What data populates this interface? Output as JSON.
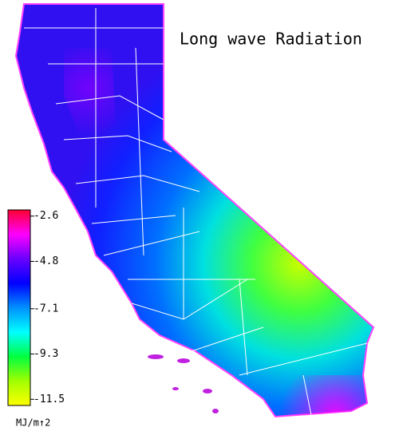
{
  "title": "Long wave Radiation",
  "colorbar": {
    "lim": [
      -2.3,
      -11.8
    ],
    "ticks": [
      -2.6,
      -4.8,
      -7.1,
      -9.3,
      -11.5
    ],
    "unit": "MJ/m↑2",
    "colors": [
      "#ff0030",
      "#ff00ff",
      "#6a00ff",
      "#0000ff",
      "#0090ff",
      "#00ffff",
      "#00ff40",
      "#a0ff00",
      "#ffff00"
    ]
  }
}
